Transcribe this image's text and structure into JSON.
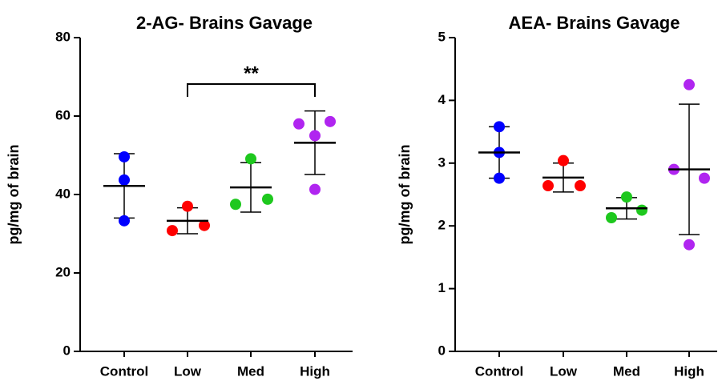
{
  "chart_data": [
    {
      "type": "dot",
      "title": "2-AG- Brains Gavage",
      "ylabel": "pg/mg of brain",
      "categories": [
        "Control",
        "Low",
        "Med",
        "High"
      ],
      "groups": [
        {
          "color": "#0000ff",
          "values": [
            49.6,
            43.7,
            33.3
          ],
          "mean": 42.2,
          "sd": 8.2
        },
        {
          "color": "#ff0000",
          "values": [
            30.8,
            32.1,
            37.0
          ],
          "mean": 33.3,
          "sd": 3.3
        },
        {
          "color": "#1ec81e",
          "values": [
            37.5,
            38.8,
            49.1
          ],
          "mean": 41.8,
          "sd": 6.3
        },
        {
          "color": "#b025f0",
          "values": [
            58.0,
            58.6,
            55.0,
            41.3
          ],
          "mean": 53.2,
          "sd": 8.1
        }
      ],
      "ylim": [
        0,
        80
      ],
      "yticks": [
        0,
        20,
        40,
        60,
        80
      ],
      "annotation": "**"
    },
    {
      "type": "dot",
      "title": "AEA- Brains Gavage",
      "ylabel": "pg/mg of brain",
      "categories": [
        "Control",
        "Low",
        "Med",
        "High"
      ],
      "groups": [
        {
          "color": "#0000ff",
          "values": [
            3.58,
            3.17,
            2.76
          ],
          "mean": 3.17,
          "sd": 0.41
        },
        {
          "color": "#ff0000",
          "values": [
            2.64,
            3.04,
            2.64
          ],
          "mean": 2.77,
          "sd": 0.23
        },
        {
          "color": "#1ec81e",
          "values": [
            2.46,
            2.13,
            2.25
          ],
          "mean": 2.28,
          "sd": 0.17
        },
        {
          "color": "#b025f0",
          "values": [
            4.25,
            2.9,
            2.76,
            1.7
          ],
          "mean": 2.9,
          "sd": 1.04
        }
      ],
      "ylim": [
        0,
        5
      ],
      "yticks": [
        0,
        1,
        2,
        3,
        4,
        5
      ]
    }
  ]
}
